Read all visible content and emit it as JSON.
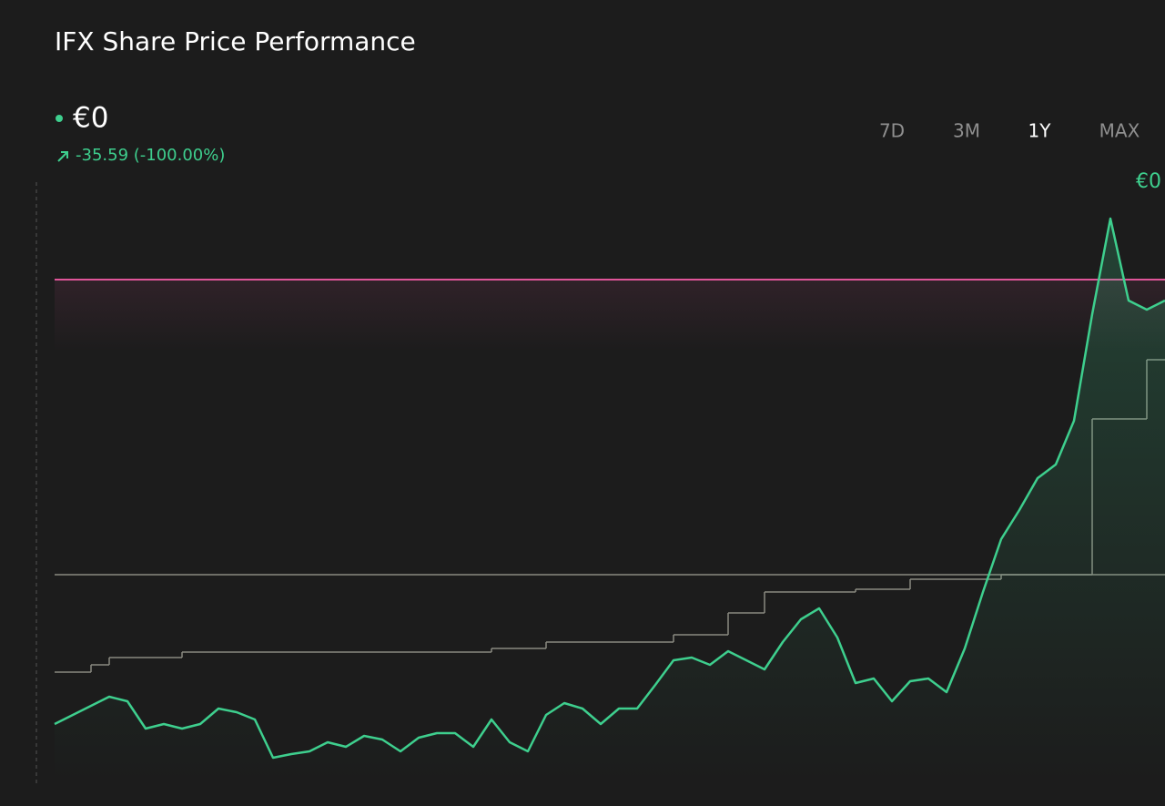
{
  "chart_data": {
    "type": "line",
    "title": "IFX Share Price Performance",
    "price": "€0",
    "change": "-35.59 (-100.00%)",
    "ranges": [
      "7D",
      "3M",
      "1Y",
      "MAX"
    ],
    "active_range": 2,
    "annotation": "€0",
    "ylim": [
      20,
      86
    ],
    "series": [
      {
        "color": "#3ecf8e",
        "style": "line",
        "values": [
          26.5,
          27.5,
          28.5,
          29.5,
          29,
          26,
          26.5,
          26,
          26.5,
          28.2,
          27.8,
          27,
          22.8,
          23.2,
          23.5,
          24.5,
          24,
          25.2,
          24.8,
          23.5,
          25,
          25.5,
          25.5,
          24,
          27,
          24.5,
          23.5,
          27.5,
          28.8,
          28.2,
          26.5,
          28.2,
          28.2,
          30.8,
          33.5,
          33.8,
          33,
          34.5,
          33.5,
          32.5,
          35.5,
          38,
          39.2,
          36,
          31,
          31.5,
          29,
          31.2,
          31.5,
          30,
          34.8,
          41,
          46.8,
          50,
          53.5,
          55,
          59.8,
          71.5,
          82,
          73,
          72,
          73
        ]
      },
      {
        "color": "#8a8a80",
        "style": "step",
        "values": [
          32.2,
          32.2,
          33,
          33.8,
          33.8,
          33.8,
          33.8,
          34.4,
          34.4,
          34.4,
          34.4,
          34.4,
          34.4,
          34.4,
          34.4,
          34.4,
          34.4,
          34.4,
          34.4,
          34.4,
          34.4,
          34.4,
          34.4,
          34.4,
          34.8,
          34.8,
          34.8,
          35.5,
          35.5,
          35.5,
          35.5,
          35.5,
          35.5,
          35.5,
          36.3,
          36.3,
          36.3,
          38.7,
          38.7,
          41,
          41,
          41,
          41,
          41,
          41.3,
          41.3,
          41.3,
          42.4,
          42.4,
          42.4,
          42.4,
          42.4,
          42.9,
          42.9,
          42.9,
          42.9,
          42.9,
          60,
          60,
          60,
          66.5,
          66.5
        ]
      }
    ],
    "reference_lines": [
      {
        "value": 75.3,
        "color": "#e0559a"
      },
      {
        "value": 42.9,
        "color": "#8a8a80"
      }
    ]
  }
}
